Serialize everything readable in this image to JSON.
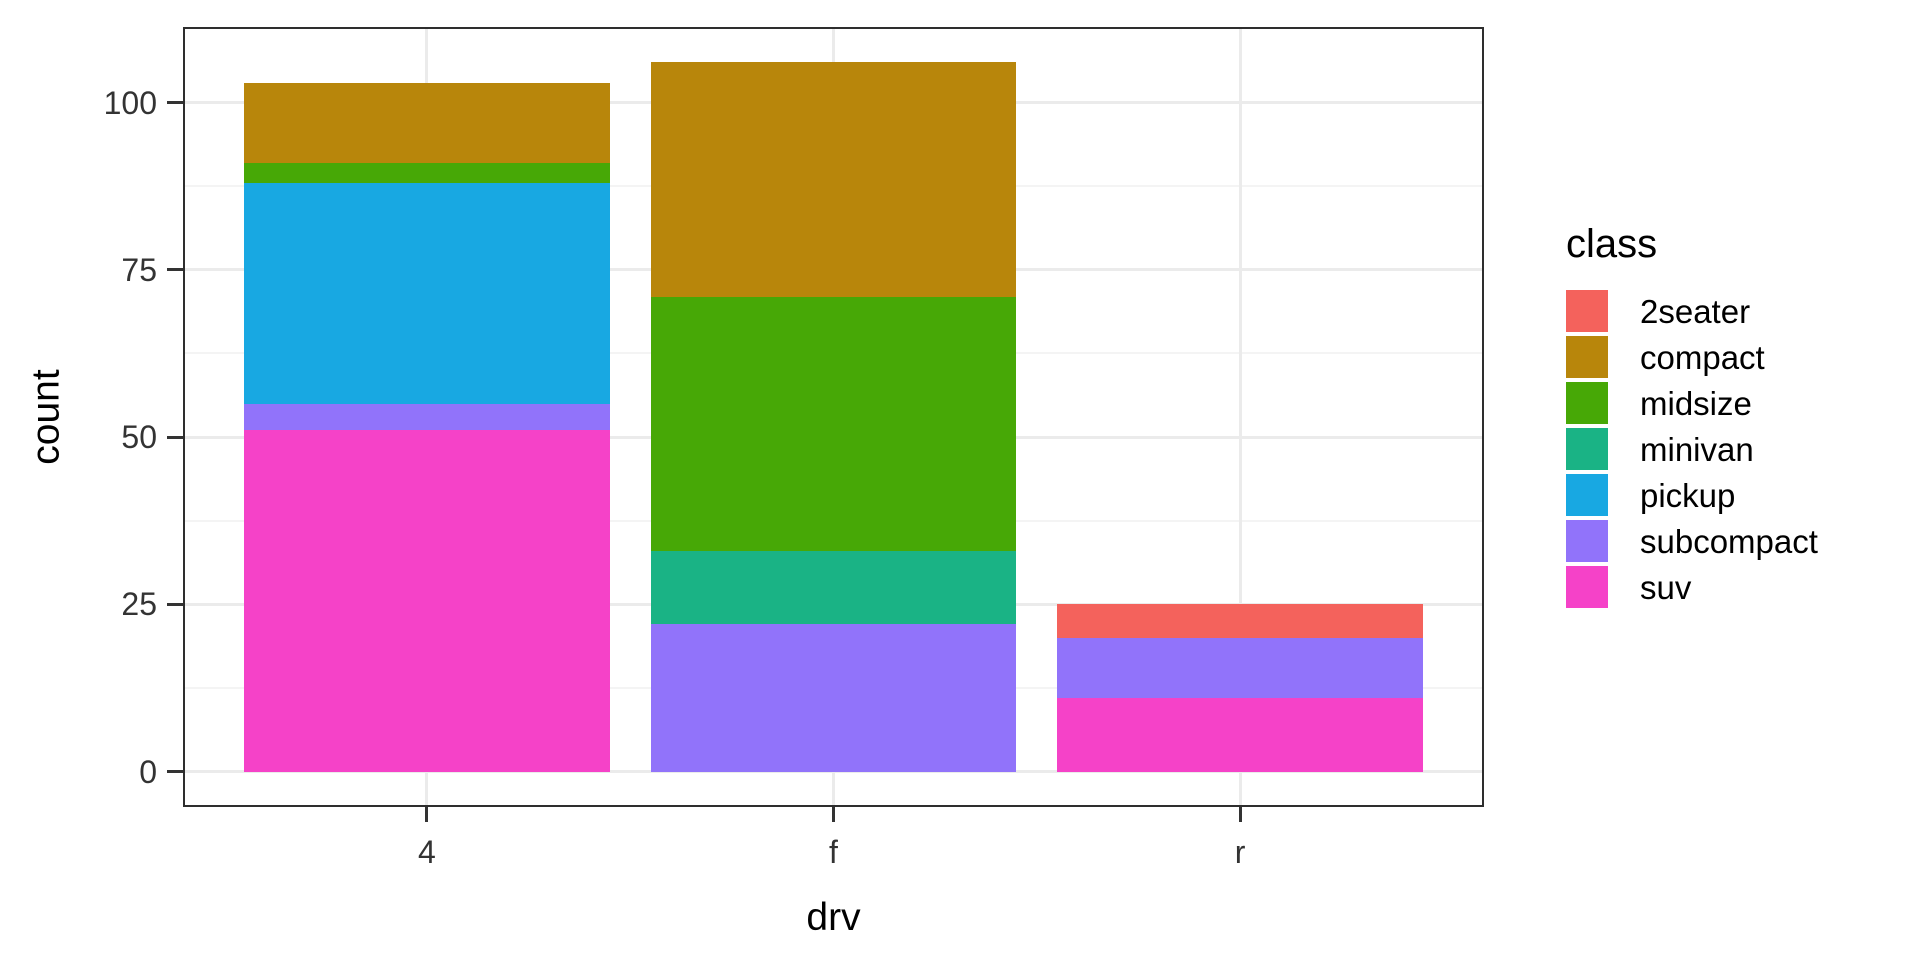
{
  "chart_data": {
    "type": "bar",
    "stacked": true,
    "title": "",
    "xlabel": "drv",
    "ylabel": "count",
    "legend_title": "class",
    "legend_position": "right",
    "grid": true,
    "categories": [
      "4",
      "f",
      "r"
    ],
    "series": [
      {
        "name": "2seater",
        "color": "#F4625C",
        "values": [
          0,
          0,
          5
        ]
      },
      {
        "name": "compact",
        "color": "#B8860B",
        "values": [
          12,
          35,
          0
        ]
      },
      {
        "name": "midsize",
        "color": "#47A806",
        "values": [
          3,
          38,
          0
        ]
      },
      {
        "name": "minivan",
        "color": "#1AB385",
        "values": [
          0,
          11,
          0
        ]
      },
      {
        "name": "pickup",
        "color": "#18A8E2",
        "values": [
          33,
          0,
          0
        ]
      },
      {
        "name": "subcompact",
        "color": "#9173FA",
        "values": [
          4,
          22,
          9
        ]
      },
      {
        "name": "suv",
        "color": "#F542C8",
        "values": [
          51,
          0,
          11
        ]
      }
    ],
    "stack_order_bottom_to_top": [
      "suv",
      "subcompact",
      "pickup",
      "minivan",
      "midsize",
      "compact",
      "2seater"
    ],
    "y_ticks": [
      0,
      25,
      50,
      75,
      100
    ],
    "y_ticks_minor": [
      12.5,
      37.5,
      62.5,
      87.5
    ],
    "ylim": [
      0,
      106
    ]
  },
  "style": {
    "background": "#FFFFFF",
    "panel_border": "#2E2E2E",
    "grid_major": "#EBEBEB",
    "grid_minor": "#F4F4F4",
    "tick_mark": "#333333",
    "axis_text": "#333333",
    "title_text": "#000000"
  }
}
